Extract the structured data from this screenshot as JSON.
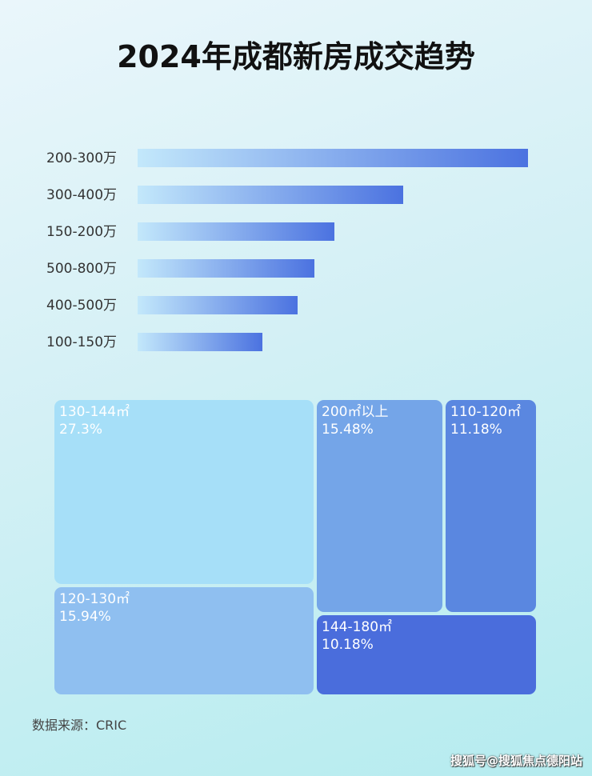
{
  "chart_data": [
    {
      "type": "bar",
      "orientation": "horizontal",
      "title": "2024年成都新房成交趋势",
      "categories": [
        "200-300万",
        "300-400万",
        "150-200万",
        "500-800万",
        "400-500万",
        "100-150万"
      ],
      "values": [
        100,
        68,
        50.4,
        45.3,
        41,
        32
      ],
      "value_note": "relative lengths, largest = 100; no axis printed",
      "grid": false,
      "colors": [
        "#c3e8fb",
        "#4b72e0"
      ]
    },
    {
      "type": "treemap",
      "items": [
        {
          "label": "130-144㎡",
          "value": "27.3%",
          "color": "#a6dff8"
        },
        {
          "label": "120-130㎡",
          "value": "15.94%",
          "color": "#8fbff0"
        },
        {
          "label": "200㎡以上",
          "value": "15.48%",
          "color": "#74a5e8"
        },
        {
          "label": "110-120㎡",
          "value": "11.18%",
          "color": "#5a87e0"
        },
        {
          "label": "144-180㎡",
          "value": "10.18%",
          "color": "#4a6ddc"
        }
      ]
    }
  ],
  "source": "数据来源：CRIC",
  "watermark": "搜狐号@搜狐焦点德阳站"
}
